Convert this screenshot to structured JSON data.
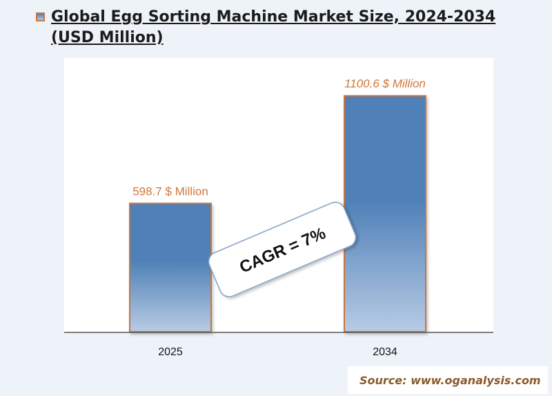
{
  "title": "Global Egg Sorting Machine Market Size, 2024-2034 (USD Million)",
  "source": "Source: www.oganalysis.com",
  "colors": {
    "bar_top": "#4f81b8",
    "bar_bottom": "#b8cbe4",
    "bar_border": "#c8763a",
    "label": "#d0763a",
    "axis": "#555555"
  },
  "chart_data": {
    "type": "bar",
    "title": "Global Egg Sorting Machine Market Size, 2024-2034 (USD Million)",
    "categories": [
      "2025",
      "2034"
    ],
    "values": [
      598.7,
      1100.6
    ],
    "data_labels": [
      "598.7 $ Million",
      "1100.6 $ Million"
    ],
    "annotation": "CAGR = 7%",
    "xlabel": "",
    "ylabel": "",
    "ylim": [
      0,
      1280
    ],
    "grid": false,
    "legend": "none"
  }
}
